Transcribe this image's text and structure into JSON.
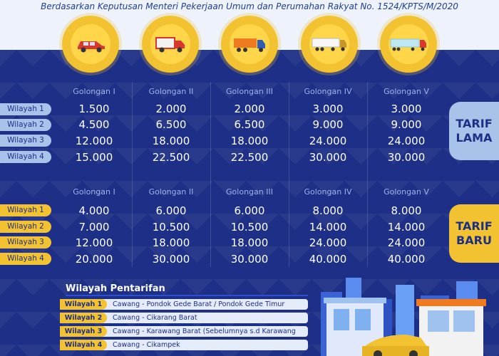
{
  "subtitle": "Berdasarkan Keputusan Menteri Pekerjaan Umum dan Perumahan Rakyat No. 1524/KPTS/M/2020",
  "vehicles": [
    "car-icon",
    "truck-small-icon",
    "truck-medium-icon",
    "truck-large-icon",
    "trailer-truck-icon"
  ],
  "golongan": [
    "Golongan I",
    "Golongan II",
    "Golongan III",
    "Golongan IV",
    "Golongan V"
  ],
  "tarif_lama": {
    "tag": [
      "TARIF",
      "LAMA"
    ],
    "rows": [
      {
        "label": "Wilayah 1",
        "values": [
          "1.500",
          "2.000",
          "2.000",
          "3.000",
          "3.000"
        ]
      },
      {
        "label": "Wilayah 2",
        "values": [
          "4.500",
          "6.500",
          "6.500",
          "9.000",
          "9.000"
        ]
      },
      {
        "label": "Wilayah 3",
        "values": [
          "12.000",
          "18.000",
          "18.000",
          "24.000",
          "24.000"
        ]
      },
      {
        "label": "Wilayah 4",
        "values": [
          "15.000",
          "22.500",
          "22.500",
          "30.000",
          "30.000"
        ]
      }
    ]
  },
  "tarif_baru": {
    "tag": [
      "TARIF",
      "BARU"
    ],
    "rows": [
      {
        "label": "Wilayah 1",
        "values": [
          "4.000",
          "6.000",
          "6.000",
          "8.000",
          "8.000"
        ]
      },
      {
        "label": "Wilayah 2",
        "values": [
          "7.000",
          "10.500",
          "10.500",
          "14.000",
          "14.000"
        ]
      },
      {
        "label": "Wilayah 3",
        "values": [
          "12.000",
          "18.000",
          "18.000",
          "24.000",
          "24.000"
        ]
      },
      {
        "label": "Wilayah 4",
        "values": [
          "20.000",
          "30.000",
          "30.000",
          "40.000",
          "40.000"
        ]
      }
    ]
  },
  "legend": {
    "title": "Wilayah Pentarifan",
    "items": [
      {
        "label": "Wilayah 1",
        "desc": "Cawang - Pondok Gede Barat / Pondok Gede Timur"
      },
      {
        "label": "Wilayah 2",
        "desc": "Cawang - Cikarang Barat"
      },
      {
        "label": "Wilayah 3",
        "desc": "Cawang - Karawang Barat (Sebelumnya s.d Karawang Timur)"
      },
      {
        "label": "Wilayah 4",
        "desc": "Cawang - Cikampek"
      }
    ]
  },
  "colors": {
    "navy": "#1d2f86",
    "yellow": "#f3c230",
    "light_blue": "#a7c3ea"
  }
}
